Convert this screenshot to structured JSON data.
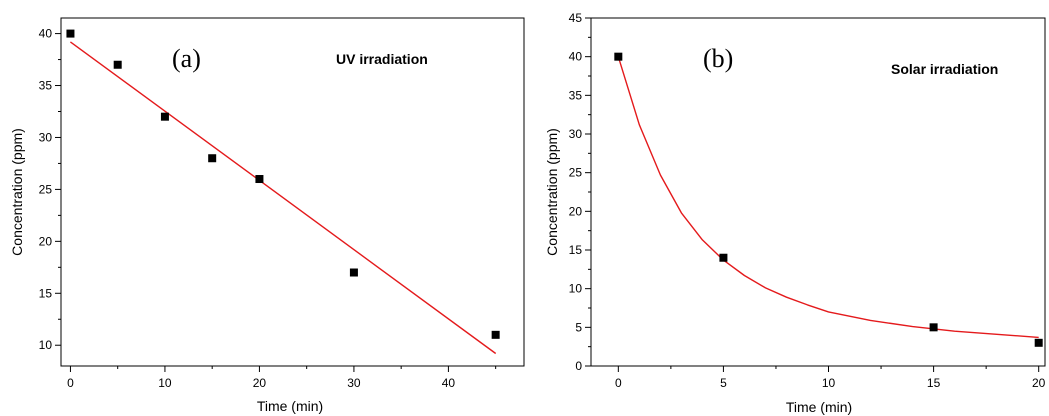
{
  "chart_data": [
    {
      "type": "scatter",
      "panel_label": "(a)",
      "annotation": "UV irradiation",
      "xlabel": "Time (min)",
      "ylabel": "Concentration (ppm)",
      "xlim": [
        -1,
        48
      ],
      "ylim": [
        8,
        41.5
      ],
      "xticks": [
        0,
        10,
        20,
        30,
        40
      ],
      "xticks_minor": [
        5,
        15,
        25,
        35,
        45
      ],
      "yticks": [
        10,
        15,
        20,
        25,
        30,
        35,
        40
      ],
      "yticks_minor": [
        12.5,
        17.5,
        22.5,
        27.5,
        32.5,
        37.5
      ],
      "series": [
        {
          "kind": "points",
          "color": "#000000",
          "x": [
            0,
            5,
            10,
            15,
            20,
            30,
            45
          ],
          "y": [
            40,
            37,
            32,
            28,
            26,
            17,
            11
          ]
        },
        {
          "kind": "fit-line",
          "color": "#e41a1c",
          "x": [
            0,
            45
          ],
          "y": [
            39.2,
            9.2
          ]
        }
      ],
      "grid": false
    },
    {
      "type": "scatter",
      "panel_label": "(b)",
      "annotation": "Solar irradiation",
      "xlabel": "Time (min)",
      "ylabel": "Concentration (ppm)",
      "xlim": [
        -1.3,
        20.3
      ],
      "ylim": [
        0,
        45
      ],
      "xticks": [
        0,
        5,
        10,
        15,
        20
      ],
      "xticks_minor": [
        2.5,
        7.5,
        12.5,
        17.5
      ],
      "yticks": [
        0,
        5,
        10,
        15,
        20,
        25,
        30,
        35,
        40,
        45
      ],
      "yticks_minor": [
        2.5,
        7.5,
        12.5,
        17.5,
        22.5,
        27.5,
        32.5,
        37.5,
        42.5
      ],
      "series": [
        {
          "kind": "points",
          "color": "#000000",
          "x": [
            0,
            5,
            15,
            20
          ],
          "y": [
            40,
            14,
            5,
            3
          ]
        },
        {
          "kind": "fit-curve",
          "color": "#e41a1c",
          "x": [
            0,
            1,
            2,
            3,
            4,
            5,
            6,
            7,
            8,
            9,
            10,
            12,
            14,
            16,
            18,
            20
          ],
          "y": [
            40,
            31.2,
            24.7,
            19.8,
            16.3,
            13.7,
            11.7,
            10.1,
            8.9,
            7.9,
            7.0,
            5.9,
            5.1,
            4.5,
            4.1,
            3.7
          ]
        }
      ],
      "grid": false
    }
  ]
}
